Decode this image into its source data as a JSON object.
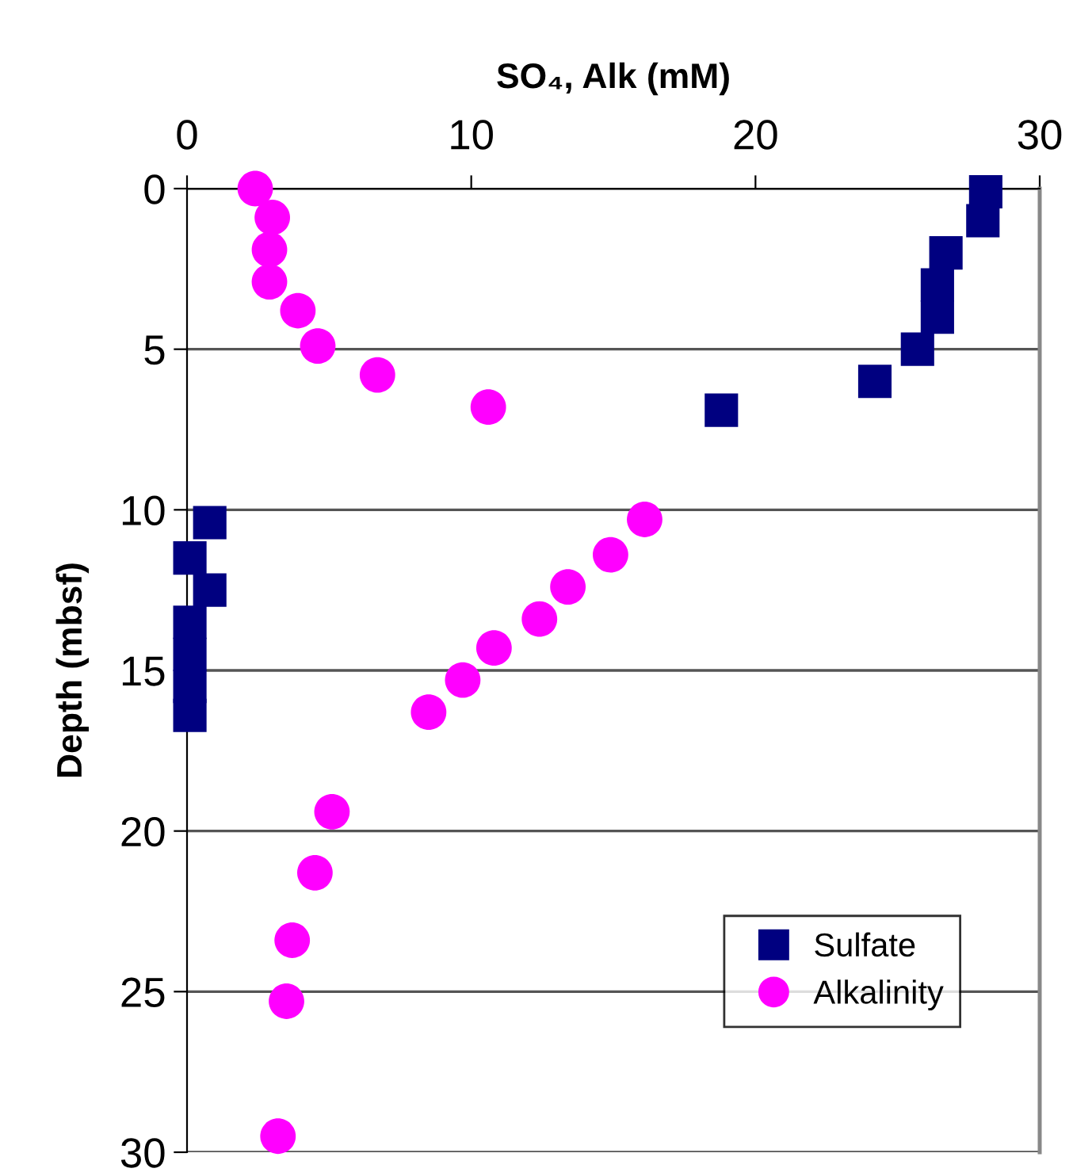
{
  "chart_data": {
    "type": "scatter",
    "xlabel": "SO₄, Alk (mM)",
    "ylabel": "Depth (mbsf)",
    "xlim": [
      0,
      30
    ],
    "xticks": [
      0,
      10,
      20,
      30
    ],
    "ylim": [
      30,
      0
    ],
    "yticks": [
      0,
      5,
      10,
      15,
      20,
      25,
      30
    ],
    "grid": "y",
    "legend": "bottom right",
    "series": [
      {
        "name": "Sulfate",
        "color": "#000080",
        "marker": "square",
        "x": [
          28.1,
          28.0,
          26.7,
          26.4,
          26.4,
          25.7,
          24.2,
          18.8,
          0.8,
          0.1,
          0.8,
          0.1,
          0.1,
          0.1,
          0.1
        ],
        "values": [
          0.1,
          1.0,
          2.0,
          3.0,
          4.0,
          5.0,
          6.0,
          6.9,
          10.4,
          11.5,
          12.5,
          13.5,
          14.5,
          15.5,
          16.4
        ]
      },
      {
        "name": "Alkalinity",
        "color": "#ff00ff",
        "marker": "circle",
        "x": [
          2.4,
          3.0,
          2.9,
          2.9,
          3.9,
          4.6,
          6.7,
          10.6,
          16.1,
          14.9,
          13.4,
          12.4,
          10.8,
          9.7,
          8.5,
          5.1,
          4.5,
          3.7,
          3.5,
          3.2
        ],
        "values": [
          0,
          0.9,
          1.9,
          2.9,
          3.8,
          4.9,
          5.8,
          6.8,
          10.3,
          11.4,
          12.4,
          13.4,
          14.3,
          15.3,
          16.3,
          19.4,
          21.3,
          23.4,
          25.3,
          29.5
        ]
      }
    ]
  }
}
